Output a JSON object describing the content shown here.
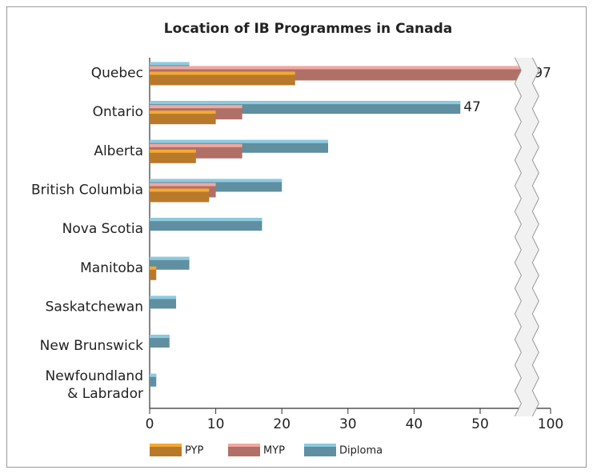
{
  "chart_data": {
    "type": "hbar",
    "title": "Location of IB Programmes in Canada",
    "categories": [
      "Quebec",
      "Ontario",
      "Alberta",
      "British Columbia",
      "Nova Scotia",
      "Manitoba",
      "Saskatchewan",
      "New Brunswick",
      "Newfoundland\n& Labrador"
    ],
    "series": [
      {
        "name": "Diploma",
        "color": "#5f8fa0",
        "highlight": "#8ccbe0",
        "values": [
          6,
          47,
          27,
          20,
          17,
          6,
          4,
          3,
          1
        ],
        "value_labels": [
          null,
          "47",
          null,
          null,
          null,
          null,
          null,
          null,
          null
        ]
      },
      {
        "name": "MYP",
        "color": "#b07068",
        "highlight": "#f0a8a0",
        "values": [
          97,
          14,
          14,
          10,
          0,
          0,
          0,
          0,
          0
        ],
        "value_labels": [
          "97",
          null,
          null,
          null,
          null,
          null,
          null,
          null,
          null
        ]
      },
      {
        "name": "PYP",
        "color": "#b8792a",
        "highlight": "#f2aa35",
        "values": [
          22,
          10,
          7,
          9,
          0,
          1,
          0,
          0,
          0
        ],
        "value_labels": [
          null,
          null,
          null,
          null,
          null,
          null,
          null,
          null,
          null
        ]
      }
    ],
    "legend_order": [
      "PYP",
      "MYP",
      "Diploma"
    ],
    "xlim": [
      0,
      100
    ],
    "xticks": [
      0,
      10,
      20,
      30,
      40,
      50,
      100
    ],
    "broken_axis": true
  }
}
